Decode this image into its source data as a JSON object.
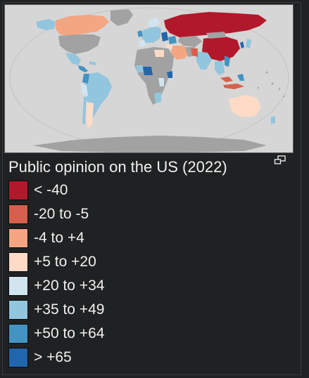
{
  "caption": "Public opinion on the US (2022)",
  "legend": [
    {
      "label": "< -40",
      "color": "#b2182b"
    },
    {
      "label": "-20 to -5",
      "color": "#d6604d"
    },
    {
      "label": "-4 to +4",
      "color": "#f4a582"
    },
    {
      "label": "+5 to +20",
      "color": "#fddbc7"
    },
    {
      "label": "+20 to +34",
      "color": "#d1e5f0"
    },
    {
      "label": "+35 to +49",
      "color": "#92c5de"
    },
    {
      "label": "+50 to +64",
      "color": "#4393c3"
    },
    {
      "label": "> +65",
      "color": "#2166ac"
    }
  ],
  "colors": {
    "background": "#202122",
    "map_ocean": "#d6d6d6",
    "no_data_land": "#a2a2a2",
    "text": "#f0f0f0"
  },
  "icons": {
    "expand": "expand-icon"
  }
}
